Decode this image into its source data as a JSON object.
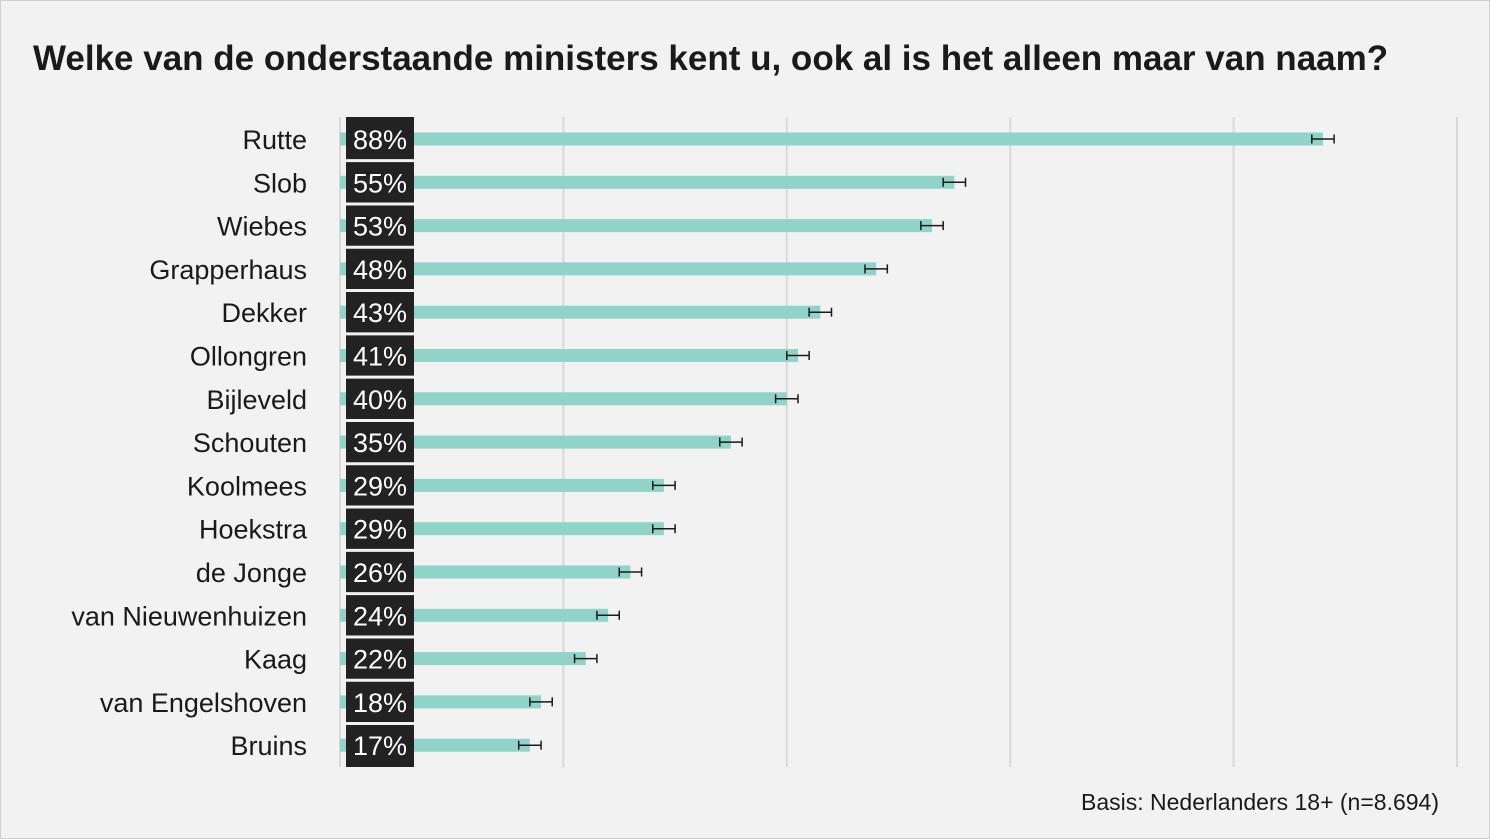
{
  "chart_data": {
    "type": "bar",
    "orientation": "horizontal",
    "title": "Welke van de onderstaande ministers kent u, ook al is het alleen maar van naam?",
    "footnote": "Basis: Nederlanders 18+ (n=8.694)",
    "categories": [
      "Rutte",
      "Slob",
      "Wiebes",
      "Grapperhaus",
      "Dekker",
      "Ollongren",
      "Bijleveld",
      "Schouten",
      "Koolmees",
      "Hoekstra",
      "de Jonge",
      "van Nieuwenhuizen",
      "Kaag",
      "van Engelshoven",
      "Bruins"
    ],
    "values": [
      88,
      55,
      53,
      48,
      43,
      41,
      40,
      35,
      29,
      29,
      26,
      24,
      22,
      18,
      17
    ],
    "value_labels": [
      "88%",
      "55%",
      "53%",
      "48%",
      "43%",
      "41%",
      "40%",
      "35%",
      "29%",
      "29%",
      "26%",
      "24%",
      "22%",
      "18%",
      "17%"
    ],
    "error_margin": 1,
    "xlim": [
      0,
      100
    ],
    "grid": true,
    "bar_color": "#8fd3c9",
    "label_box_color": "#222222",
    "gridline_color": "#d9d9d9",
    "background_color": "#f2f2f2"
  }
}
